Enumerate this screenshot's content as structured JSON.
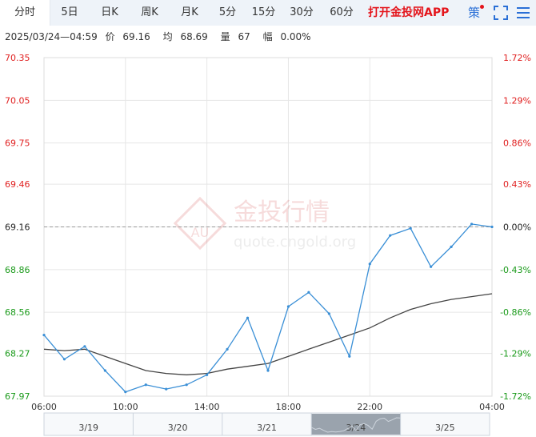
{
  "tabs": [
    {
      "label": "分时",
      "active": true
    },
    {
      "label": "5日"
    },
    {
      "label": "日K"
    },
    {
      "label": "周K"
    },
    {
      "label": "月K"
    },
    {
      "label": "5分"
    },
    {
      "label": "15分"
    },
    {
      "label": "30分"
    },
    {
      "label": "60分"
    }
  ],
  "header": {
    "app_link": "打开金投网APP",
    "strategy": "策",
    "fullscreen_icon": "fullscreen-icon",
    "menu_icon": "menu-icon"
  },
  "info": {
    "datetime": "2025/03/24—04:59",
    "price_label": "价",
    "price": "69.16",
    "avg_label": "均",
    "avg": "68.69",
    "vol_label": "量",
    "vol": "67",
    "chg_label": "幅",
    "chg": "0.00%"
  },
  "watermark": {
    "brand": "金投行情",
    "url": "quote.cngold.org",
    "logo": "AU"
  },
  "colors": {
    "up": "#e02020",
    "down": "#1a9a1a",
    "price_line": "#3a8fd6",
    "avg_line": "#444444",
    "grid": "#e6e6e6",
    "ref_line": "#999999"
  },
  "chart_data": {
    "type": "line",
    "title": "",
    "ylim": [
      67.97,
      70.35
    ],
    "y_ticks": [
      "70.35",
      "70.05",
      "69.75",
      "69.46",
      "69.16",
      "68.86",
      "68.56",
      "68.27",
      "67.97"
    ],
    "y_ticks_right": [
      "1.72%",
      "1.29%",
      "0.86%",
      "0.43%",
      "0.00%",
      "-0.43%",
      "-0.86%",
      "-1.29%",
      "-1.72%"
    ],
    "reference_price": 69.16,
    "x_ticks": [
      "06:00",
      "10:00",
      "14:00",
      "18:00",
      "22:00",
      "04:00"
    ],
    "navigator_labels": [
      "3/19",
      "3/20",
      "3/21",
      "3/24",
      "3/25"
    ],
    "x": [
      "06:00",
      "07:00",
      "08:00",
      "09:00",
      "10:00",
      "11:00",
      "12:00",
      "13:00",
      "14:00",
      "15:00",
      "16:00",
      "17:00",
      "18:00",
      "19:00",
      "20:00",
      "21:00",
      "22:00",
      "23:00",
      "00:00",
      "01:00",
      "02:00",
      "03:00",
      "04:00"
    ],
    "series": [
      {
        "values": [
          68.4,
          68.23,
          68.32,
          68.15,
          68.0,
          68.05,
          68.02,
          68.05,
          68.12,
          68.3,
          68.52,
          68.15,
          68.6,
          68.7,
          68.55,
          68.25,
          68.9,
          69.1,
          69.15,
          68.88,
          69.02,
          69.18,
          69.16
        ]
      },
      {
        "values": [
          68.3,
          68.29,
          68.3,
          68.25,
          68.2,
          68.15,
          68.13,
          68.12,
          68.13,
          68.16,
          68.18,
          68.2,
          68.25,
          68.3,
          68.35,
          68.4,
          68.45,
          68.52,
          68.58,
          68.62,
          68.65,
          68.67,
          68.69
        ]
      }
    ]
  }
}
